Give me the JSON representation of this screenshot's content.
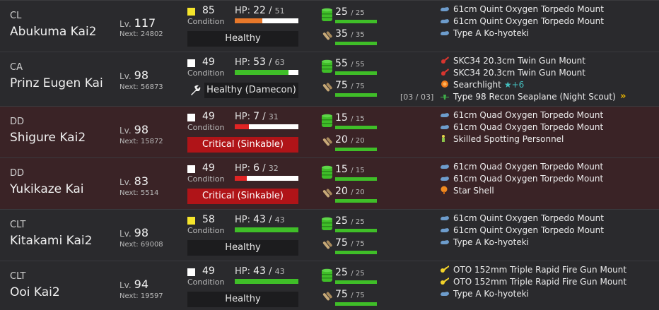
{
  "colors": {
    "hp_full": "#3fbe28",
    "hp_mid": "#e8782a",
    "hp_low": "#e02424",
    "cond_sparkle": "#f5e52b",
    "cond_normal": "#ffffff"
  },
  "labels": {
    "condition": "Condition",
    "hp": "HP:",
    "lv": "Lv.",
    "next": "Next:",
    "fuel_icon": "fuel-icon",
    "ammo_icon": "ammo-icon"
  },
  "ships": [
    {
      "type": "CL",
      "name": "Abukuma Kai2",
      "level": "117",
      "next": "24802",
      "condition": "85",
      "cond_color": "#f5e52b",
      "hp_cur": "22",
      "hp_max": "51",
      "hp_fraction": 0.431,
      "hp_color": "#e8782a",
      "status": "Healthy",
      "status_style": "healthy",
      "damecon": false,
      "fuel_cur": "25",
      "fuel_max": "25",
      "ammo_cur": "35",
      "ammo_max": "35",
      "slots_text": "",
      "equipment": [
        {
          "icon": "torpedo-icon",
          "name": "61cm Quint Oxygen Torpedo Mount"
        },
        {
          "icon": "torpedo-icon",
          "name": "61cm Quint Oxygen Torpedo Mount"
        },
        {
          "icon": "submarine-icon",
          "name": "Type A Ko-hyoteki"
        }
      ]
    },
    {
      "type": "CA",
      "name": "Prinz Eugen Kai",
      "level": "98",
      "next": "56873",
      "condition": "49",
      "cond_color": "#ffffff",
      "hp_cur": "53",
      "hp_max": "63",
      "hp_fraction": 0.841,
      "hp_color": "#3fbe28",
      "status": "Healthy (Damecon)",
      "status_style": "healthy",
      "damecon": true,
      "fuel_cur": "55",
      "fuel_max": "55",
      "ammo_cur": "75",
      "ammo_max": "75",
      "slots_text": "[03 / 03]",
      "equipment": [
        {
          "icon": "gun-icon",
          "name": "SKC34 20.3cm Twin Gun Mount"
        },
        {
          "icon": "gun-icon",
          "name": "SKC34 20.3cm Twin Gun Mount"
        },
        {
          "icon": "searchlight-icon",
          "name": "Searchlight",
          "improve": "★+6"
        },
        {
          "icon": "seaplane-icon",
          "name": "Type 98 Recon Seaplane (Night Scout)"
        }
      ],
      "proficiency": "»"
    },
    {
      "type": "DD",
      "name": "Shigure Kai2",
      "level": "98",
      "next": "15872",
      "condition": "49",
      "cond_color": "#ffffff",
      "hp_cur": "7",
      "hp_max": "31",
      "hp_fraction": 0.226,
      "hp_color": "#e02424",
      "status": "Critical (Sinkable)",
      "status_style": "crit",
      "damecon": false,
      "fuel_cur": "15",
      "fuel_max": "15",
      "ammo_cur": "20",
      "ammo_max": "20",
      "slots_text": "",
      "equipment": [
        {
          "icon": "torpedo-icon",
          "name": "61cm Quad Oxygen Torpedo Mount"
        },
        {
          "icon": "torpedo-icon",
          "name": "61cm Quad Oxygen Torpedo Mount"
        },
        {
          "icon": "personnel-icon",
          "name": "Skilled Spotting Personnel"
        }
      ]
    },
    {
      "type": "DD",
      "name": "Yukikaze Kai",
      "level": "83",
      "next": "5514",
      "condition": "49",
      "cond_color": "#ffffff",
      "hp_cur": "6",
      "hp_max": "32",
      "hp_fraction": 0.188,
      "hp_color": "#e02424",
      "status": "Critical (Sinkable)",
      "status_style": "crit",
      "damecon": false,
      "fuel_cur": "15",
      "fuel_max": "15",
      "ammo_cur": "20",
      "ammo_max": "20",
      "slots_text": "",
      "equipment": [
        {
          "icon": "torpedo-icon",
          "name": "61cm Quad Oxygen Torpedo Mount"
        },
        {
          "icon": "torpedo-icon",
          "name": "61cm Quad Oxygen Torpedo Mount"
        },
        {
          "icon": "star-shell-icon",
          "name": "Star Shell"
        }
      ]
    },
    {
      "type": "CLT",
      "name": "Kitakami Kai2",
      "level": "98",
      "next": "69008",
      "condition": "58",
      "cond_color": "#f5e52b",
      "hp_cur": "43",
      "hp_max": "43",
      "hp_fraction": 1.0,
      "hp_color": "#3fbe28",
      "status": "Healthy",
      "status_style": "healthy",
      "damecon": false,
      "fuel_cur": "25",
      "fuel_max": "25",
      "ammo_cur": "75",
      "ammo_max": "75",
      "slots_text": "",
      "equipment": [
        {
          "icon": "torpedo-icon",
          "name": "61cm Quint Oxygen Torpedo Mount"
        },
        {
          "icon": "torpedo-icon",
          "name": "61cm Quint Oxygen Torpedo Mount"
        },
        {
          "icon": "submarine-icon",
          "name": "Type A Ko-hyoteki"
        }
      ]
    },
    {
      "type": "CLT",
      "name": "Ooi Kai2",
      "level": "94",
      "next": "19597",
      "condition": "49",
      "cond_color": "#ffffff",
      "hp_cur": "43",
      "hp_max": "43",
      "hp_fraction": 1.0,
      "hp_color": "#3fbe28",
      "status": "Healthy",
      "status_style": "healthy",
      "damecon": false,
      "fuel_cur": "25",
      "fuel_max": "25",
      "ammo_cur": "75",
      "ammo_max": "75",
      "slots_text": "",
      "equipment": [
        {
          "icon": "sec-gun-icon",
          "name": "OTO 152mm Triple Rapid Fire Gun Mount"
        },
        {
          "icon": "sec-gun-icon",
          "name": "OTO 152mm Triple Rapid Fire Gun Mount"
        },
        {
          "icon": "submarine-icon",
          "name": "Type A Ko-hyoteki"
        }
      ]
    }
  ]
}
